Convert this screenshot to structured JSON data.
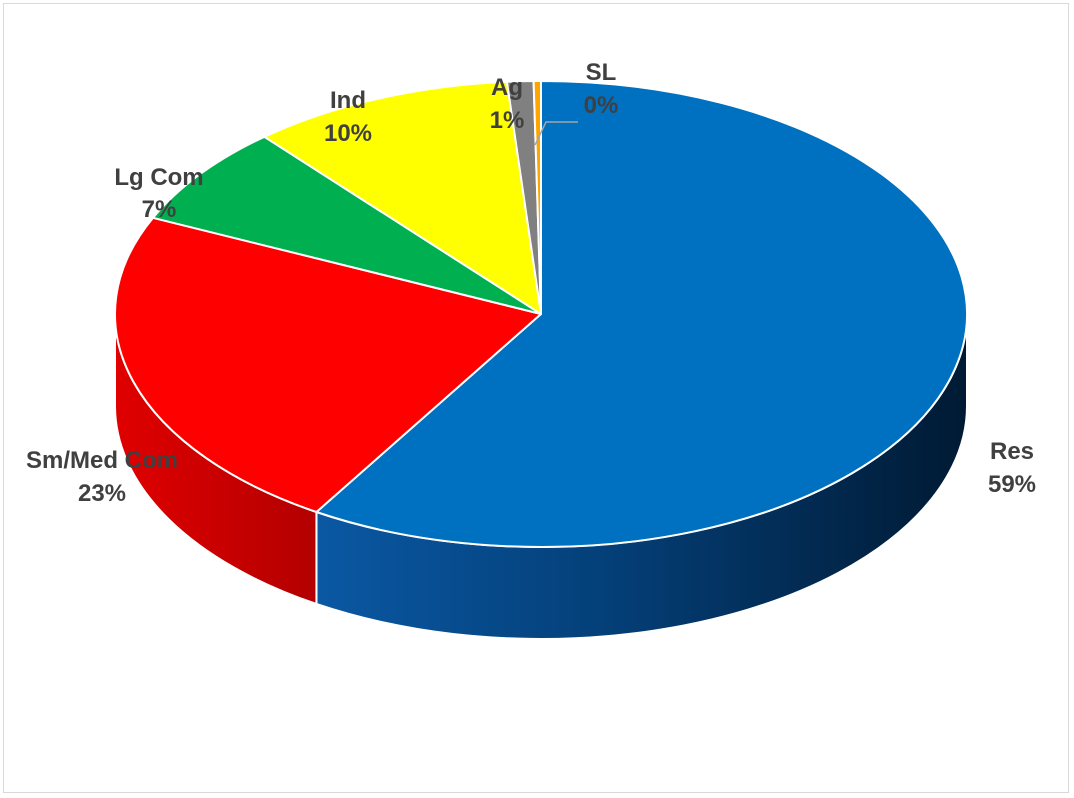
{
  "chart_data": {
    "type": "pie",
    "title": "",
    "style": "3d",
    "slices": [
      {
        "label": "Res",
        "value": 59,
        "value_label": "59%",
        "color": "#0070C0"
      },
      {
        "label": "Sm/Med Com",
        "value": 23,
        "value_label": "23%",
        "color": "#FF0000"
      },
      {
        "label": "Lg Com",
        "value": 7,
        "value_label": "7%",
        "color": "#00B050"
      },
      {
        "label": "Ind",
        "value": 10,
        "value_label": "10%",
        "color": "#FFFF00"
      },
      {
        "label": "Ag",
        "value": 1,
        "value_label": "1%",
        "color": "#808080"
      },
      {
        "label": "SL",
        "value": 0,
        "value_label": "0%",
        "color": "#FFA500"
      }
    ]
  }
}
